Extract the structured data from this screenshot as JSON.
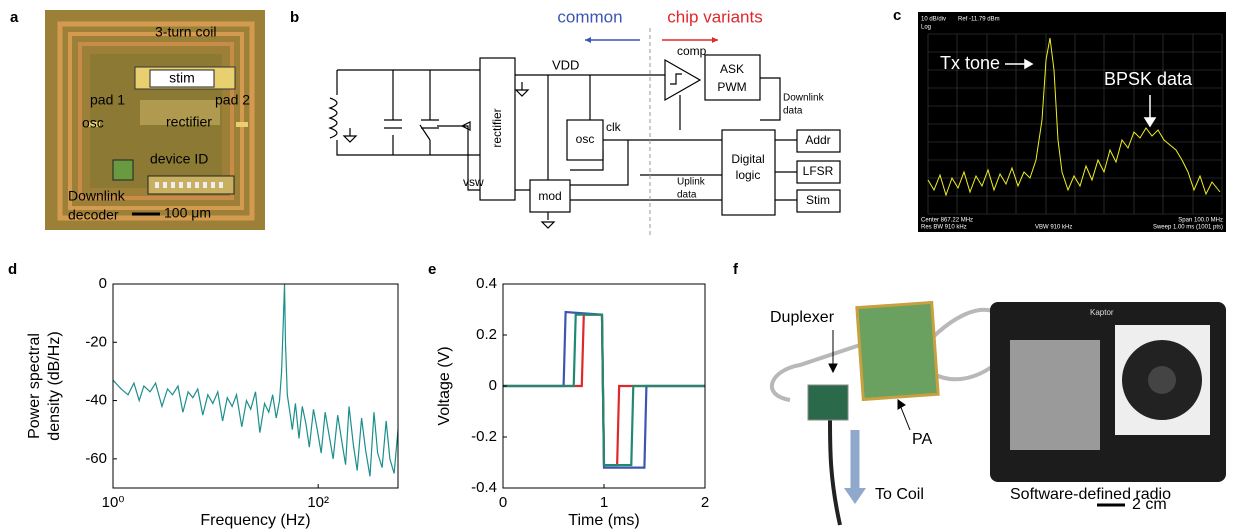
{
  "panel_labels": [
    "a",
    "b",
    "c",
    "d",
    "e",
    "f"
  ],
  "chip": {
    "coil": "3-turn coil",
    "stim": "stim",
    "pad1": "pad 1",
    "pad2": "pad 2",
    "osc": "osc",
    "rectifier": "rectifier",
    "device_id": "device ID",
    "decoder": [
      "Downlink",
      "decoder"
    ],
    "scale": "100 μm"
  },
  "circuit": {
    "common": "common",
    "variants": "chip variants",
    "vdd": "VDD",
    "comp": "comp",
    "ask": [
      "ASK",
      "PWM"
    ],
    "rectifier": "rectifier",
    "osc": "osc",
    "clk": "clk",
    "downlink": [
      "Downlink",
      "data"
    ],
    "addr": "Addr",
    "logic": [
      "Digital",
      "logic"
    ],
    "lfsr": "LFSR",
    "uplink": [
      "Uplink",
      "data"
    ],
    "stim": "Stim",
    "mod": "mod",
    "vsw": "vsw"
  },
  "spectrum": {
    "scale": "10 dB/div",
    "ref": "Ref -11.79 dBm",
    "log": "Log",
    "center": "Center 867.22 MHz",
    "span": "Span 100.0 MHz",
    "rbw": "Res BW 910 kHz",
    "vbw": "VBW 910 kHz",
    "sweep": "Sweep 1.00 ms (1001 pts)",
    "tone": "Tx tone",
    "bpsk": "BPSK data"
  },
  "setup": {
    "duplexer": "Duplexer",
    "pa": "PA",
    "sdr": "Software-defined radio",
    "coil": "To Coil",
    "scale": "2 cm",
    "brand": "Kaptor"
  },
  "chart_data": [
    {
      "type": "line",
      "x_label": "Frequency (Hz)",
      "y_label": [
        "Power spectral",
        "density (dB/Hz)"
      ],
      "xscale": "log",
      "xlim": [
        1,
        600
      ],
      "ylim": [
        -70,
        0
      ],
      "xticks": [
        {
          "value": 1,
          "label": "10⁰"
        },
        {
          "value": 100,
          "label": "10²"
        }
      ],
      "yticks": [
        0,
        -20,
        -40,
        -60
      ],
      "series": [
        {
          "color": "#1b8f8c",
          "x": [
            1,
            1.2,
            1.4,
            1.6,
            1.8,
            2,
            2.3,
            2.6,
            3,
            3.4,
            3.8,
            4.3,
            4.8,
            5.4,
            6,
            6.7,
            7.5,
            8.4,
            9.4,
            10.5,
            11.7,
            13,
            14.5,
            16,
            18,
            20,
            22,
            24.5,
            27,
            30,
            33,
            36,
            39,
            42,
            44,
            46,
            47,
            48,
            50,
            53,
            56,
            60,
            65,
            70,
            76,
            82,
            90,
            98,
            107,
            117,
            128,
            140,
            155,
            170,
            185,
            200,
            220,
            240,
            265,
            290,
            320,
            350,
            380,
            420,
            460,
            500,
            550,
            600
          ],
          "values": [
            -33,
            -36,
            -38,
            -34,
            -40,
            -35,
            -37,
            -34,
            -42,
            -36,
            -38,
            -35,
            -44,
            -37,
            -39,
            -36,
            -45,
            -38,
            -41,
            -37,
            -47,
            -39,
            -42,
            -38,
            -49,
            -40,
            -43,
            -37,
            -51,
            -41,
            -44,
            -38,
            -46,
            -40,
            -30,
            -10,
            0,
            -20,
            -38,
            -44,
            -50,
            -41,
            -53,
            -42,
            -48,
            -56,
            -43,
            -50,
            -58,
            -44,
            -52,
            -60,
            -45,
            -54,
            -62,
            -42,
            -55,
            -64,
            -46,
            -57,
            -66,
            -44,
            -58,
            -63,
            -47,
            -60,
            -65,
            -50
          ]
        }
      ]
    },
    {
      "type": "line",
      "x_label": "Time (ms)",
      "y_label": "Voltage (V)",
      "xlim": [
        0,
        2
      ],
      "ylim": [
        -0.4,
        0.4
      ],
      "xticks": [
        0,
        1,
        2
      ],
      "yticks": [
        0.4,
        0.2,
        0,
        -0.2,
        -0.4
      ],
      "series": [
        {
          "color": "#3c55b4",
          "x": [
            0,
            0.6,
            0.62,
            0.98,
            1.0,
            1.4,
            1.42,
            2
          ],
          "values": [
            0,
            0,
            0.29,
            0.28,
            -0.32,
            -0.32,
            0,
            0
          ]
        },
        {
          "color": "#e0282c",
          "x": [
            0,
            0.78,
            0.8,
            0.98,
            1.0,
            1.13,
            1.15,
            2
          ],
          "values": [
            0,
            0,
            0.28,
            0.28,
            -0.31,
            -0.31,
            0,
            0
          ]
        },
        {
          "color": "#1f8a70",
          "x": [
            0,
            0.7,
            0.72,
            0.98,
            1.0,
            1.27,
            1.29,
            2
          ],
          "values": [
            0,
            0,
            0.28,
            0.28,
            -0.31,
            -0.31,
            0,
            0
          ]
        }
      ]
    }
  ]
}
